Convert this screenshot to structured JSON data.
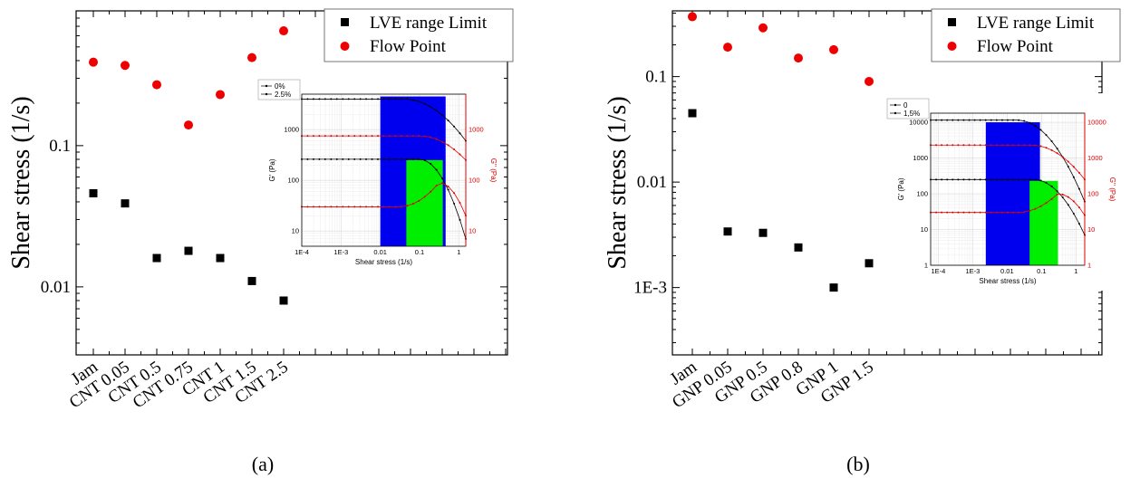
{
  "colors": {
    "lve": "#000000",
    "flow": "#ee0000",
    "region_blue": "#0000ee",
    "region_green": "#00ee00",
    "inset_red": "#e00000"
  },
  "chart_data": [
    {
      "type": "scatter",
      "caption": "(a)",
      "ylabel": "Shear stress (1/s)",
      "yscale": "log",
      "ylim": [
        0.0033,
        0.9
      ],
      "yticks": [
        0.01,
        0.1
      ],
      "yticklabels": [
        "0.01",
        "0.1"
      ],
      "categories": [
        "Jam",
        "CNT 0.05",
        "CNT 0.5",
        "CNT 0.75",
        "CNT 1",
        "CNT 1.5",
        "CNT 2.5"
      ],
      "legend": {
        "position": "top-right",
        "entries": [
          "LVE range Limit",
          "Flow Point"
        ]
      },
      "series": [
        {
          "name": "LVE range Limit",
          "marker": "square",
          "values": [
            0.046,
            0.039,
            0.016,
            0.018,
            0.016,
            0.011,
            0.008
          ]
        },
        {
          "name": "Flow Point",
          "marker": "circle",
          "values": [
            0.39,
            0.37,
            0.27,
            0.14,
            0.23,
            0.42,
            0.65
          ]
        }
      ],
      "inset": {
        "xlabel": "Shear stress (1/s)",
        "ylabel_left": "G' (Pa)",
        "ylabel_right": "G'' (Pa)",
        "xscale": "log",
        "xlim": [
          0.0001,
          1.5
        ],
        "ylim_left": [
          5,
          5000
        ],
        "ylim_right": [
          5,
          5000
        ],
        "xticklabels": [
          "1E-4",
          "1E-3",
          "0.01",
          "0.1",
          "1"
        ],
        "yticklabels_left": [
          "10",
          "100",
          "1000"
        ],
        "yticklabels_right": [
          "10",
          "100",
          "1000"
        ],
        "legend": [
          "0%",
          "2.5%"
        ],
        "regions": [
          {
            "color": "blue",
            "x_range": [
              0.01,
              0.46
            ],
            "y_top": 4500
          },
          {
            "color": "green",
            "x_range": [
              0.046,
              0.39
            ],
            "y_top": 250
          }
        ],
        "curves": [
          {
            "label": "2.5%",
            "modulus": "G'",
            "color": "black",
            "plateau": 4000,
            "knee": 0.04,
            "end": 600
          },
          {
            "label": "2.5%",
            "modulus": "G''",
            "color": "red",
            "plateau": 750,
            "knee": 0.1,
            "end": 250
          },
          {
            "label": "0%",
            "modulus": "G'",
            "color": "black",
            "plateau": 260,
            "knee": 0.1,
            "end": 7
          },
          {
            "label": "0%",
            "modulus": "G''",
            "color": "red",
            "plateau": 30,
            "knee": 0.03,
            "end": 20,
            "peak": 90
          }
        ]
      }
    },
    {
      "type": "scatter",
      "caption": "(b)",
      "ylabel": "Shear stress (1/s)",
      "yscale": "log",
      "ylim": [
        0.00023,
        0.42
      ],
      "yticks": [
        0.001,
        0.01,
        0.1
      ],
      "yticklabels": [
        "1E-3",
        "0.01",
        "0.1"
      ],
      "categories": [
        "Jam",
        "GNP 0.05",
        "GNP 0.5",
        "GNP 0.8",
        "GNP 1",
        "GNP 1.5"
      ],
      "legend": {
        "position": "top-right",
        "entries": [
          "LVE range Limit",
          "Flow Point"
        ]
      },
      "series": [
        {
          "name": "LVE range Limit",
          "marker": "square",
          "values": [
            0.045,
            0.0034,
            0.0033,
            0.0024,
            0.001,
            0.0017
          ]
        },
        {
          "name": "Flow Point",
          "marker": "circle",
          "values": [
            0.37,
            0.19,
            0.29,
            0.15,
            0.18,
            0.09
          ]
        }
      ],
      "inset": {
        "xlabel": "Shear stress (1/s)",
        "ylabel_left": "G' (Pa)",
        "ylabel_right": "G'' (Pa)",
        "xscale": "log",
        "xlim": [
          6e-05,
          1.8
        ],
        "ylim_left": [
          1,
          18000
        ],
        "ylim_right": [
          1,
          18000
        ],
        "xticklabels": [
          "1E-4",
          "1E-3",
          "0.01",
          "0.1",
          "1"
        ],
        "yticklabels_left": [
          "1",
          "10",
          "100",
          "1000",
          "10000"
        ],
        "yticklabels_right": [
          "1",
          "10",
          "100",
          "1000",
          "10000"
        ],
        "legend": [
          "0",
          "1,5%"
        ],
        "regions": [
          {
            "color": "blue",
            "x_range": [
              0.0024,
              0.09
            ],
            "y_top": 10000
          },
          {
            "color": "green",
            "x_range": [
              0.045,
              0.3
            ],
            "y_top": 230
          }
        ],
        "curves": [
          {
            "label": "1,5%",
            "modulus": "G'",
            "color": "black",
            "plateau": 11500,
            "knee": 0.02,
            "end": 60
          },
          {
            "label": "1,5%",
            "modulus": "G''",
            "color": "red",
            "plateau": 2300,
            "knee": 0.05,
            "end": 250
          },
          {
            "label": "0",
            "modulus": "G'",
            "color": "black",
            "plateau": 250,
            "knee": 0.06,
            "end": 7
          },
          {
            "label": "0",
            "modulus": "G''",
            "color": "red",
            "plateau": 30,
            "knee": 0.02,
            "end": 25,
            "peak": 100
          }
        ]
      }
    }
  ]
}
